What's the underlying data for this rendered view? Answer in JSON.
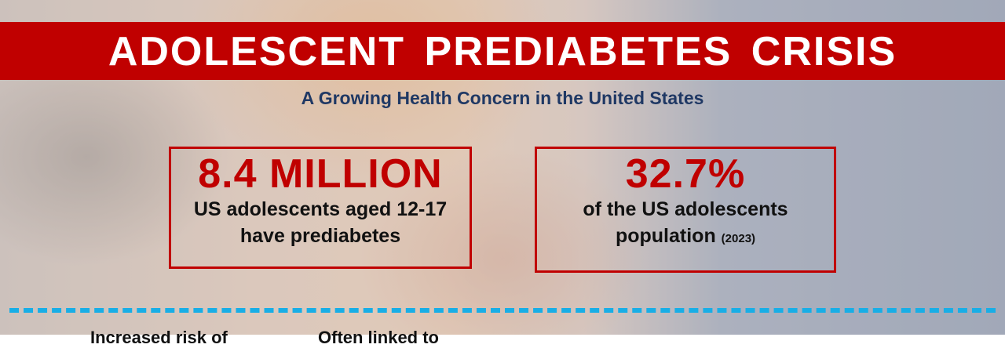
{
  "header": {
    "title": "ADOLESCENT PREDIABETES CRISIS",
    "subtitle": "A Growing Health Concern in the United States"
  },
  "stats": [
    {
      "headline": "8.4 MILLION",
      "lines": [
        "US adolescents aged 12-17",
        "have prediabetes"
      ]
    },
    {
      "headline": "32.7%",
      "lines": [
        "of the US adolescents",
        "population"
      ],
      "note": "(2023)"
    }
  ],
  "footer": {
    "items": [
      "Increased risk of",
      "Often linked to"
    ]
  }
}
